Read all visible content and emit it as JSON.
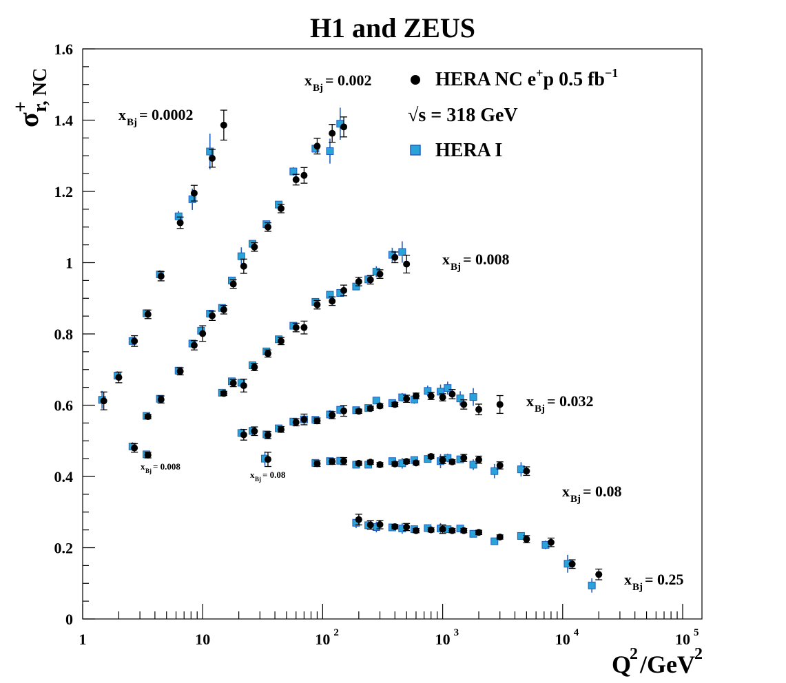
{
  "chart_data": {
    "type": "scatter",
    "title": "H1 and ZEUS",
    "xlabel": {
      "main": "Q",
      "sup": "2",
      "mid": "/GeV",
      "sup2": "2"
    },
    "ylabel": {
      "main": "σ",
      "sup": "+",
      "sub": "r, NC"
    },
    "x_scale": "log",
    "xlim": [
      1,
      100000
    ],
    "ylim": [
      0,
      1.6
    ],
    "y_ticks": [
      "0",
      "0.2",
      "0.4",
      "0.6",
      "0.8",
      "1",
      "1.2",
      "1.4",
      "1.6"
    ],
    "x_ticks": [
      {
        "base": "1",
        "exp": ""
      },
      {
        "base": "10",
        "exp": ""
      },
      {
        "base": "10",
        "exp": "2"
      },
      {
        "base": "10",
        "exp": "3"
      },
      {
        "base": "10",
        "exp": "4"
      },
      {
        "base": "10",
        "exp": "5"
      }
    ],
    "legend": {
      "position": "top-right",
      "entries": [
        {
          "marker": "circle",
          "color": "#000000",
          "pre": "HERA NC e",
          "sup": "+",
          "mid": "p 0.5 fb",
          "sup2": "−1"
        },
        {
          "marker": "none",
          "pre": "√s = 318 GeV",
          "sup": "",
          "mid": "",
          "sup2": ""
        },
        {
          "marker": "square",
          "color": "#2aa3d8",
          "pre": "HERA I",
          "sup": "",
          "mid": "",
          "sup2": ""
        }
      ]
    },
    "annotations": [
      {
        "text": "x",
        "sub": "Bj",
        "value": " = 0.0002",
        "size": "large"
      },
      {
        "text": "x",
        "sub": "Bj",
        "value": " = 0.002",
        "size": "large"
      },
      {
        "text": "x",
        "sub": "Bj",
        "value": " = 0.008",
        "size": "large"
      },
      {
        "text": "x",
        "sub": "Bj",
        "value": " = 0.032",
        "size": "large"
      },
      {
        "text": "x",
        "sub": "Bj",
        "value": " = 0.08",
        "size": "large"
      },
      {
        "text": "x",
        "sub": "Bj",
        "value": " = 0.25",
        "size": "large"
      },
      {
        "text": "x",
        "sub": "Bj",
        "value": " = 0.008",
        "size": "small"
      },
      {
        "text": "x",
        "sub": "Bj",
        "value": " = 0.08",
        "size": "small"
      }
    ],
    "series": [
      {
        "name": "HERA NC e+p 0.5 fb−1",
        "marker": "circle",
        "color": "#000000",
        "points": [
          [
            1.5,
            0.612,
            0.025
          ],
          [
            2.0,
            0.678,
            0.015
          ],
          [
            2.7,
            0.78,
            0.015
          ],
          [
            3.5,
            0.855,
            0.012
          ],
          [
            4.5,
            0.962,
            0.013
          ],
          [
            6.5,
            1.112,
            0.016
          ],
          [
            8.5,
            1.195,
            0.022
          ],
          [
            12.0,
            1.293,
            0.025
          ],
          [
            15.0,
            1.386,
            0.042
          ],
          [
            3.5,
            0.568,
            0.006
          ],
          [
            4.5,
            0.616,
            0.01
          ],
          [
            6.5,
            0.695,
            0.01
          ],
          [
            8.5,
            0.768,
            0.013
          ],
          [
            10.0,
            0.801,
            0.022
          ],
          [
            12.0,
            0.851,
            0.013
          ],
          [
            15.0,
            0.868,
            0.012
          ],
          [
            18.0,
            0.94,
            0.012
          ],
          [
            22.0,
            0.99,
            0.02
          ],
          [
            27.0,
            1.044,
            0.012
          ],
          [
            35.0,
            1.1,
            0.012
          ],
          [
            45.0,
            1.152,
            0.012
          ],
          [
            60.0,
            1.233,
            0.015
          ],
          [
            70.0,
            1.245,
            0.022
          ],
          [
            90.0,
            1.327,
            0.022
          ],
          [
            120.0,
            1.363,
            0.025
          ],
          [
            150.0,
            1.381,
            0.028
          ],
          [
            15.0,
            0.633,
            0.006
          ],
          [
            18.0,
            0.662,
            0.01
          ],
          [
            22.0,
            0.655,
            0.018
          ],
          [
            27.0,
            0.707,
            0.01
          ],
          [
            35.0,
            0.745,
            0.01
          ],
          [
            45.0,
            0.78,
            0.01
          ],
          [
            60.0,
            0.818,
            0.012
          ],
          [
            70.0,
            0.818,
            0.018
          ],
          [
            90.0,
            0.882,
            0.012
          ],
          [
            120.0,
            0.892,
            0.012
          ],
          [
            150.0,
            0.922,
            0.015
          ],
          [
            200.0,
            0.947,
            0.012
          ],
          [
            250.0,
            0.952,
            0.012
          ],
          [
            300.0,
            0.968,
            0.012
          ],
          [
            400.0,
            1.015,
            0.015
          ],
          [
            500.0,
            0.996,
            0.025
          ],
          [
            2.7,
            0.48,
            0.012
          ],
          [
            3.5,
            0.46,
            0.008
          ],
          [
            22.0,
            0.517,
            0.015
          ],
          [
            27.0,
            0.527,
            0.012
          ],
          [
            35.0,
            0.516,
            0.01
          ],
          [
            45.0,
            0.532,
            0.008
          ],
          [
            60.0,
            0.552,
            0.01
          ],
          [
            70.0,
            0.56,
            0.015
          ],
          [
            90.0,
            0.556,
            0.008
          ],
          [
            120.0,
            0.572,
            0.01
          ],
          [
            150.0,
            0.584,
            0.015
          ],
          [
            200.0,
            0.583,
            0.006
          ],
          [
            250.0,
            0.591,
            0.006
          ],
          [
            300.0,
            0.598,
            0.006
          ],
          [
            400.0,
            0.602,
            0.006
          ],
          [
            500.0,
            0.618,
            0.01
          ],
          [
            600.0,
            0.626,
            0.008
          ],
          [
            800.0,
            0.626,
            0.01
          ],
          [
            1000.0,
            0.622,
            0.01
          ],
          [
            1200.0,
            0.631,
            0.013
          ],
          [
            1500.0,
            0.602,
            0.013
          ],
          [
            2000.0,
            0.588,
            0.015
          ],
          [
            3000.0,
            0.602,
            0.025
          ],
          [
            35.0,
            0.448,
            0.02
          ],
          [
            90.0,
            0.436,
            0.008
          ],
          [
            120.0,
            0.442,
            0.008
          ],
          [
            150.0,
            0.443,
            0.01
          ],
          [
            200.0,
            0.437,
            0.006
          ],
          [
            250.0,
            0.44,
            0.006
          ],
          [
            300.0,
            0.433,
            0.006
          ],
          [
            400.0,
            0.435,
            0.006
          ],
          [
            500.0,
            0.442,
            0.006
          ],
          [
            600.0,
            0.438,
            0.006
          ],
          [
            800.0,
            0.456,
            0.006
          ],
          [
            1000.0,
            0.446,
            0.01
          ],
          [
            1200.0,
            0.441,
            0.006
          ],
          [
            1500.0,
            0.452,
            0.01
          ],
          [
            2000.0,
            0.447,
            0.01
          ],
          [
            3000.0,
            0.431,
            0.01
          ],
          [
            5000.0,
            0.415,
            0.012
          ],
          [
            200.0,
            0.279,
            0.015
          ],
          [
            250.0,
            0.264,
            0.012
          ],
          [
            300.0,
            0.265,
            0.012
          ],
          [
            400.0,
            0.259,
            0.006
          ],
          [
            500.0,
            0.258,
            0.01
          ],
          [
            600.0,
            0.248,
            0.006
          ],
          [
            800.0,
            0.25,
            0.006
          ],
          [
            1000.0,
            0.252,
            0.012
          ],
          [
            1200.0,
            0.248,
            0.006
          ],
          [
            1500.0,
            0.248,
            0.006
          ],
          [
            2000.0,
            0.243,
            0.006
          ],
          [
            3000.0,
            0.23,
            0.006
          ],
          [
            5000.0,
            0.224,
            0.01
          ],
          [
            8000.0,
            0.215,
            0.012
          ],
          [
            12000.0,
            0.154,
            0.012
          ],
          [
            20000.0,
            0.125,
            0.015
          ]
        ]
      },
      {
        "name": "HERA I",
        "marker": "square",
        "color": "#2aa3d8",
        "points": [
          [
            1.45,
            0.615,
            0.025
          ],
          [
            1.95,
            0.683,
            0.012
          ],
          [
            2.6,
            0.78,
            0.012
          ],
          [
            3.4,
            0.858,
            0.01
          ],
          [
            4.4,
            0.967,
            0.012
          ],
          [
            6.3,
            1.13,
            0.015
          ],
          [
            8.2,
            1.178,
            0.03
          ],
          [
            11.5,
            1.312,
            0.05
          ],
          [
            3.4,
            0.57,
            0.005
          ],
          [
            4.4,
            0.618,
            0.008
          ],
          [
            6.3,
            0.697,
            0.008
          ],
          [
            8.2,
            0.773,
            0.01
          ],
          [
            9.7,
            0.809,
            0.012
          ],
          [
            11.5,
            0.857,
            0.008
          ],
          [
            14.5,
            0.873,
            0.008
          ],
          [
            17.5,
            0.95,
            0.008
          ],
          [
            21.0,
            1.018,
            0.025
          ],
          [
            26.0,
            1.053,
            0.008
          ],
          [
            34.0,
            1.108,
            0.008
          ],
          [
            43.0,
            1.163,
            0.008
          ],
          [
            57.0,
            1.256,
            0.012
          ],
          [
            87.0,
            1.32,
            0.012
          ],
          [
            115.0,
            1.313,
            0.035
          ],
          [
            140.0,
            1.39,
            0.045
          ],
          [
            14.5,
            0.635,
            0.005
          ],
          [
            17.5,
            0.667,
            0.005
          ],
          [
            21.0,
            0.663,
            0.008
          ],
          [
            26.0,
            0.712,
            0.005
          ],
          [
            34.0,
            0.751,
            0.005
          ],
          [
            43.0,
            0.785,
            0.005
          ],
          [
            57.0,
            0.823,
            0.01
          ],
          [
            87.0,
            0.89,
            0.008
          ],
          [
            115.0,
            0.91,
            0.008
          ],
          [
            140.0,
            0.915,
            0.01
          ],
          [
            190.0,
            0.933,
            0.008
          ],
          [
            240.0,
            0.953,
            0.008
          ],
          [
            280.0,
            0.975,
            0.015
          ],
          [
            380.0,
            1.022,
            0.02
          ],
          [
            460.0,
            1.03,
            0.03
          ],
          [
            2.6,
            0.484,
            0.012
          ],
          [
            3.4,
            0.462,
            0.006
          ],
          [
            21.0,
            0.522,
            0.012
          ],
          [
            26.0,
            0.528,
            0.012
          ],
          [
            34.0,
            0.518,
            0.008
          ],
          [
            43.0,
            0.535,
            0.008
          ],
          [
            57.0,
            0.554,
            0.008
          ],
          [
            70.0,
            0.56,
            0.008
          ],
          [
            87.0,
            0.559,
            0.008
          ],
          [
            115.0,
            0.574,
            0.012
          ],
          [
            140.0,
            0.587,
            0.012
          ],
          [
            190.0,
            0.586,
            0.006
          ],
          [
            240.0,
            0.592,
            0.006
          ],
          [
            280.0,
            0.613,
            0.01
          ],
          [
            380.0,
            0.606,
            0.01
          ],
          [
            460.0,
            0.622,
            0.012
          ],
          [
            580.0,
            0.616,
            0.012
          ],
          [
            750.0,
            0.64,
            0.015
          ],
          [
            960.0,
            0.638,
            0.02
          ],
          [
            1100.0,
            0.648,
            0.018
          ],
          [
            1400.0,
            0.619,
            0.02
          ],
          [
            1800.0,
            0.623,
            0.025
          ],
          [
            33.0,
            0.45,
            0.02
          ],
          [
            87.0,
            0.438,
            0.01
          ],
          [
            115.0,
            0.443,
            0.01
          ],
          [
            140.0,
            0.444,
            0.01
          ],
          [
            190.0,
            0.433,
            0.01
          ],
          [
            240.0,
            0.433,
            0.008
          ],
          [
            380.0,
            0.443,
            0.01
          ],
          [
            460.0,
            0.437,
            0.015
          ],
          [
            580.0,
            0.446,
            0.008
          ],
          [
            750.0,
            0.449,
            0.01
          ],
          [
            960.0,
            0.443,
            0.02
          ],
          [
            1100.0,
            0.452,
            0.012
          ],
          [
            1400.0,
            0.448,
            0.01
          ],
          [
            1800.0,
            0.433,
            0.015
          ],
          [
            2700.0,
            0.415,
            0.02
          ],
          [
            4500.0,
            0.42,
            0.02
          ],
          [
            190.0,
            0.27,
            0.015
          ],
          [
            240.0,
            0.263,
            0.012
          ],
          [
            280.0,
            0.258,
            0.015
          ],
          [
            380.0,
            0.257,
            0.01
          ],
          [
            460.0,
            0.254,
            0.015
          ],
          [
            580.0,
            0.252,
            0.01
          ],
          [
            750.0,
            0.255,
            0.008
          ],
          [
            960.0,
            0.254,
            0.015
          ],
          [
            1100.0,
            0.252,
            0.008
          ],
          [
            1400.0,
            0.254,
            0.008
          ],
          [
            1800.0,
            0.239,
            0.01
          ],
          [
            2700.0,
            0.218,
            0.008
          ],
          [
            4500.0,
            0.233,
            0.01
          ],
          [
            7200.0,
            0.208,
            0.012
          ],
          [
            11000.0,
            0.155,
            0.025
          ],
          [
            17500.0,
            0.094,
            0.02
          ]
        ]
      }
    ]
  }
}
